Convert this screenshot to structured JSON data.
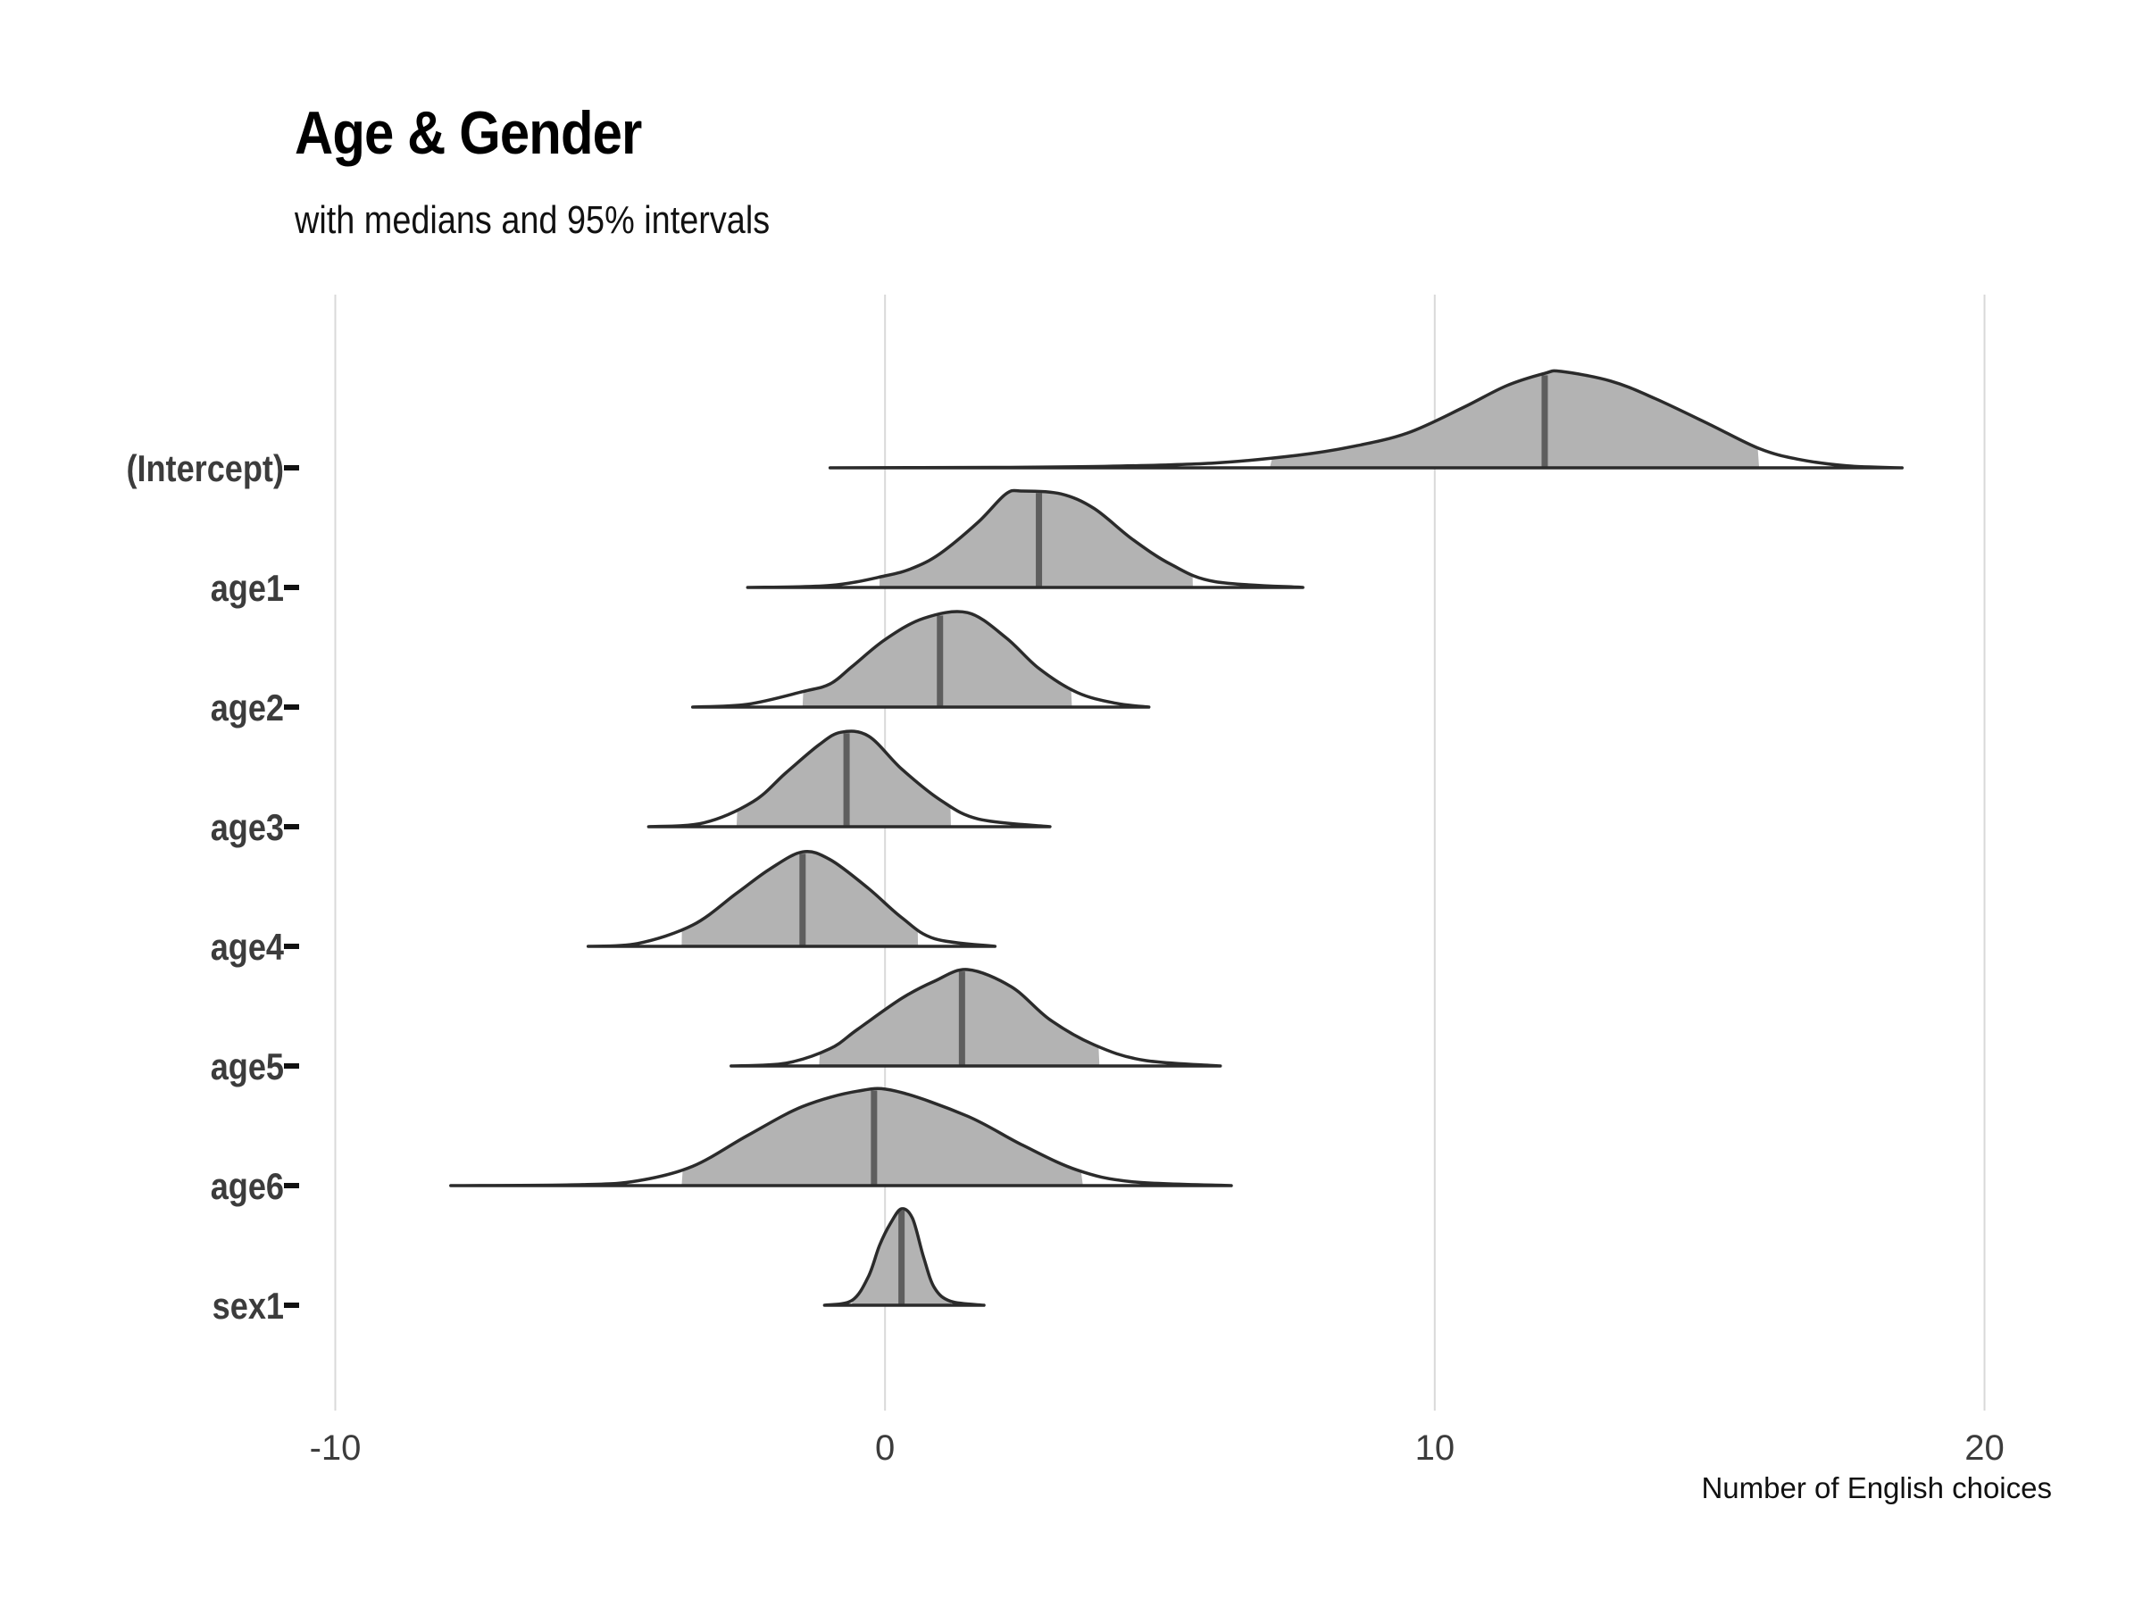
{
  "chart_data": {
    "type": "density-ridge",
    "title": "Age & Gender",
    "subtitle": "with medians and 95% intervals",
    "xlabel": "Number of English choices",
    "ylabel": "",
    "xlim": [
      -10.5,
      21.3
    ],
    "x_ticks": [
      -10,
      0,
      10,
      20
    ],
    "x_tick_labels": [
      "-10",
      "0",
      "10",
      "20"
    ],
    "grid": "vertical-major",
    "colors": {
      "fill": "#b3b3b3",
      "outline": "#2b2b2b",
      "median": "#5e5e5e",
      "grid": "#d9d9d9"
    },
    "series": [
      {
        "name": "(Intercept)",
        "min": -1.0,
        "max": 18.5,
        "lower95": 7.0,
        "upper95": 15.9,
        "median": 12.0,
        "density": [
          [
            -1.0,
            0.0
          ],
          [
            2.0,
            0.005
          ],
          [
            4.0,
            0.015
          ],
          [
            6.0,
            0.05
          ],
          [
            7.5,
            0.13
          ],
          [
            8.5,
            0.22
          ],
          [
            9.5,
            0.36
          ],
          [
            10.5,
            0.62
          ],
          [
            11.3,
            0.85
          ],
          [
            12.0,
            0.98
          ],
          [
            12.3,
            1.0
          ],
          [
            13.2,
            0.9
          ],
          [
            14.0,
            0.72
          ],
          [
            15.0,
            0.45
          ],
          [
            15.9,
            0.2
          ],
          [
            16.6,
            0.09
          ],
          [
            17.5,
            0.02
          ],
          [
            18.5,
            0.0
          ]
        ]
      },
      {
        "name": "age1",
        "min": -2.5,
        "max": 7.6,
        "lower95": -0.1,
        "upper95": 5.6,
        "median": 2.8,
        "density": [
          [
            -2.5,
            0.0
          ],
          [
            -1.0,
            0.02
          ],
          [
            0.0,
            0.12
          ],
          [
            0.5,
            0.2
          ],
          [
            1.0,
            0.35
          ],
          [
            1.7,
            0.68
          ],
          [
            2.2,
            0.97
          ],
          [
            2.5,
            1.0
          ],
          [
            3.2,
            0.97
          ],
          [
            3.8,
            0.82
          ],
          [
            4.5,
            0.5
          ],
          [
            5.2,
            0.24
          ],
          [
            6.0,
            0.06
          ],
          [
            7.6,
            0.0
          ]
        ]
      },
      {
        "name": "age2",
        "min": -3.5,
        "max": 4.8,
        "lower95": -1.5,
        "upper95": 3.4,
        "median": 1.0,
        "density": [
          [
            -3.5,
            0.0
          ],
          [
            -2.5,
            0.03
          ],
          [
            -1.5,
            0.16
          ],
          [
            -1.0,
            0.24
          ],
          [
            -0.6,
            0.42
          ],
          [
            0.0,
            0.7
          ],
          [
            0.7,
            0.92
          ],
          [
            1.5,
            0.98
          ],
          [
            2.2,
            0.72
          ],
          [
            2.8,
            0.4
          ],
          [
            3.5,
            0.15
          ],
          [
            4.2,
            0.04
          ],
          [
            4.8,
            0.0
          ]
        ]
      },
      {
        "name": "age3",
        "min": -4.3,
        "max": 3.0,
        "lower95": -2.7,
        "upper95": 1.2,
        "median": -0.7,
        "density": [
          [
            -4.3,
            0.0
          ],
          [
            -3.3,
            0.04
          ],
          [
            -2.4,
            0.26
          ],
          [
            -1.8,
            0.56
          ],
          [
            -1.2,
            0.85
          ],
          [
            -0.8,
            0.98
          ],
          [
            -0.3,
            0.94
          ],
          [
            0.3,
            0.6
          ],
          [
            1.0,
            0.28
          ],
          [
            1.7,
            0.08
          ],
          [
            3.0,
            0.0
          ]
        ]
      },
      {
        "name": "age4",
        "min": -5.4,
        "max": 2.0,
        "lower95": -3.7,
        "upper95": 0.6,
        "median": -1.5,
        "density": [
          [
            -5.4,
            0.0
          ],
          [
            -4.5,
            0.03
          ],
          [
            -3.5,
            0.22
          ],
          [
            -2.7,
            0.55
          ],
          [
            -2.1,
            0.8
          ],
          [
            -1.5,
            0.98
          ],
          [
            -1.0,
            0.9
          ],
          [
            -0.3,
            0.6
          ],
          [
            0.3,
            0.3
          ],
          [
            0.9,
            0.08
          ],
          [
            2.0,
            0.0
          ]
        ]
      },
      {
        "name": "age5",
        "min": -2.8,
        "max": 6.1,
        "lower95": -1.2,
        "upper95": 3.9,
        "median": 1.4,
        "density": [
          [
            -2.8,
            0.0
          ],
          [
            -1.8,
            0.03
          ],
          [
            -1.0,
            0.18
          ],
          [
            -0.5,
            0.38
          ],
          [
            0.3,
            0.7
          ],
          [
            0.9,
            0.88
          ],
          [
            1.5,
            1.0
          ],
          [
            2.3,
            0.82
          ],
          [
            3.0,
            0.48
          ],
          [
            3.8,
            0.22
          ],
          [
            4.7,
            0.06
          ],
          [
            6.1,
            0.0
          ]
        ]
      },
      {
        "name": "age6",
        "min": -7.9,
        "max": 6.3,
        "lower95": -3.7,
        "upper95": 3.6,
        "median": -0.2,
        "density": [
          [
            -7.9,
            0.0
          ],
          [
            -5.5,
            0.01
          ],
          [
            -4.5,
            0.05
          ],
          [
            -3.5,
            0.2
          ],
          [
            -2.5,
            0.52
          ],
          [
            -1.5,
            0.82
          ],
          [
            -0.5,
            0.98
          ],
          [
            0.2,
            0.98
          ],
          [
            1.5,
            0.72
          ],
          [
            2.5,
            0.42
          ],
          [
            3.5,
            0.16
          ],
          [
            4.5,
            0.04
          ],
          [
            6.3,
            0.0
          ]
        ]
      },
      {
        "name": "sex1",
        "min": -1.1,
        "max": 1.8,
        "lower95": -0.6,
        "upper95": 1.2,
        "median": 0.3,
        "density": [
          [
            -1.1,
            0.0
          ],
          [
            -0.6,
            0.05
          ],
          [
            -0.3,
            0.3
          ],
          [
            -0.1,
            0.62
          ],
          [
            0.1,
            0.85
          ],
          [
            0.3,
            1.0
          ],
          [
            0.5,
            0.9
          ],
          [
            0.7,
            0.5
          ],
          [
            0.9,
            0.18
          ],
          [
            1.2,
            0.04
          ],
          [
            1.8,
            0.0
          ]
        ]
      }
    ]
  }
}
